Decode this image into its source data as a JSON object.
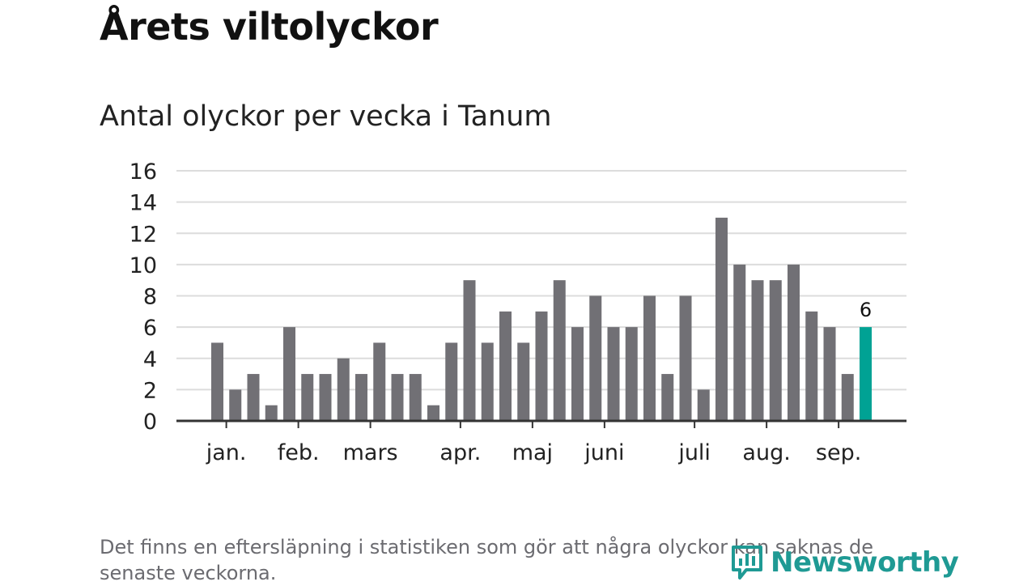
{
  "header": {
    "title": "Årets viltolyckor",
    "subtitle": "Antal olyckor per vecka i Tanum"
  },
  "footer": {
    "note": "Det finns en eftersläpning i statistiken som gör att några olyckor kan saknas de senaste veckorna.",
    "logo_text": "Newsworthy"
  },
  "colors": {
    "bar": "#717075",
    "highlight": "#00a294",
    "grid": "#dcdcdc",
    "axis": "#333333",
    "logo": "#1f9a94"
  },
  "icons": {
    "logo_icon": "newsworthy-logo-icon"
  },
  "chart_data": {
    "type": "bar",
    "title": "Antal olyckor per vecka i Tanum",
    "xlabel": "",
    "ylabel": "",
    "ylim": [
      0,
      16
    ],
    "yticks": [
      0,
      2,
      4,
      6,
      8,
      10,
      12,
      14,
      16
    ],
    "grid": true,
    "x_month_labels": [
      "jan.",
      "feb.",
      "mars",
      "apr.",
      "maj",
      "juni",
      "juli",
      "aug.",
      "sep."
    ],
    "x_month_week_positions": [
      1,
      5,
      9,
      14,
      18,
      22,
      27,
      31,
      35
    ],
    "values": [
      5,
      2,
      3,
      1,
      6,
      3,
      3,
      4,
      3,
      5,
      3,
      3,
      1,
      5,
      9,
      5,
      7,
      5,
      7,
      9,
      6,
      8,
      6,
      6,
      8,
      3,
      8,
      2,
      13,
      10,
      9,
      9,
      10,
      7,
      6,
      3,
      6
    ],
    "highlight_index": 36,
    "highlight_label": "6"
  }
}
